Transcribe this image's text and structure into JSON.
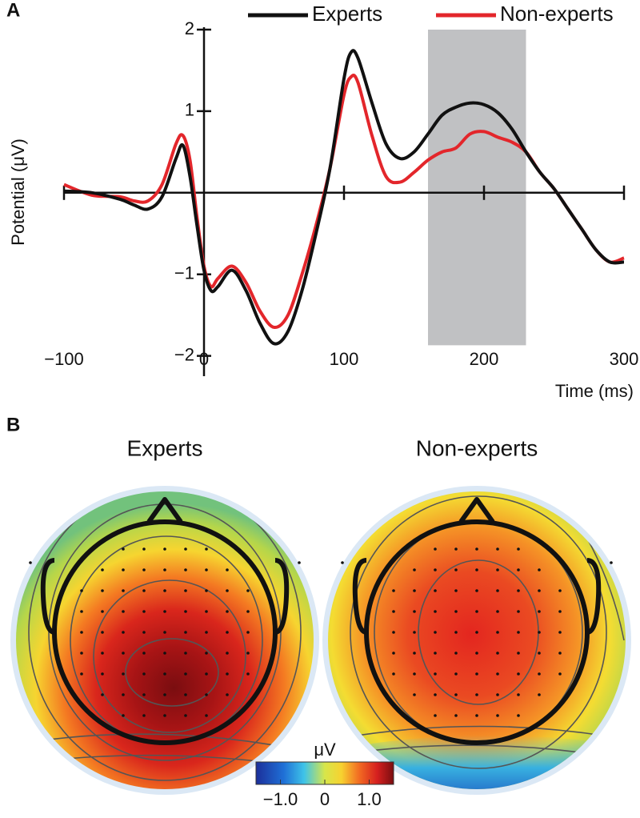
{
  "chart_data": [
    {
      "type": "line",
      "panel": "A",
      "xlabel": "Time (ms)",
      "ylabel": "Potential (μV)",
      "x": [
        -100,
        -80,
        -60,
        -50,
        -40,
        -30,
        -20,
        -15,
        -10,
        -5,
        0,
        5,
        10,
        20,
        30,
        40,
        50,
        60,
        70,
        80,
        90,
        100,
        105,
        110,
        120,
        130,
        140,
        150,
        160,
        170,
        180,
        190,
        200,
        210,
        220,
        230,
        240,
        250,
        260,
        270,
        280,
        290,
        300
      ],
      "series": [
        {
          "name": "Experts",
          "color": "#111111",
          "values": [
            0.02,
            0.0,
            -0.08,
            -0.15,
            -0.2,
            -0.05,
            0.42,
            0.58,
            0.2,
            -0.4,
            -0.95,
            -1.2,
            -1.15,
            -0.95,
            -1.2,
            -1.6,
            -1.85,
            -1.7,
            -1.2,
            -0.5,
            0.3,
            1.4,
            1.72,
            1.65,
            1.1,
            0.6,
            0.42,
            0.5,
            0.72,
            0.95,
            1.05,
            1.1,
            1.08,
            0.98,
            0.78,
            0.5,
            0.25,
            0.05,
            -0.2,
            -0.45,
            -0.7,
            -0.85,
            -0.85
          ]
        },
        {
          "name": "Non-experts",
          "color": "#e3262b",
          "values": [
            0.1,
            -0.03,
            -0.05,
            -0.1,
            -0.1,
            0.1,
            0.6,
            0.7,
            0.4,
            -0.3,
            -0.9,
            -1.15,
            -1.05,
            -0.9,
            -1.1,
            -1.45,
            -1.65,
            -1.5,
            -1.0,
            -0.4,
            0.3,
            1.2,
            1.42,
            1.35,
            0.7,
            0.2,
            0.13,
            0.25,
            0.4,
            0.5,
            0.55,
            0.72,
            0.75,
            0.68,
            0.62,
            0.5,
            0.25,
            0.05,
            -0.2,
            -0.45,
            -0.7,
            -0.85,
            -0.8
          ]
        }
      ],
      "xlim": [
        -100,
        300
      ],
      "xticks": [
        {
          "value": -100,
          "label": "−100"
        },
        0,
        100,
        200,
        300
      ],
      "ylim": [
        -2.2,
        2
      ],
      "yticks": [
        {
          "value": -2,
          "label": "−2"
        },
        {
          "value": -1,
          "label": "−1"
        },
        1,
        2
      ],
      "shade": {
        "x": [
          160,
          230
        ],
        "y": [
          -1.87,
          2
        ],
        "color": "#c0c1c3"
      },
      "legend": "top"
    },
    {
      "type": "topomap",
      "panel": "B",
      "titles": [
        "Experts",
        "Non-experts"
      ],
      "colorbar_label": "μV",
      "clim": [
        -1.55,
        1.55
      ],
      "cticks": [
        {
          "value": -1,
          "label": "−1.0"
        },
        0,
        {
          "value": 1,
          "label": "1.0"
        }
      ]
    }
  ]
}
